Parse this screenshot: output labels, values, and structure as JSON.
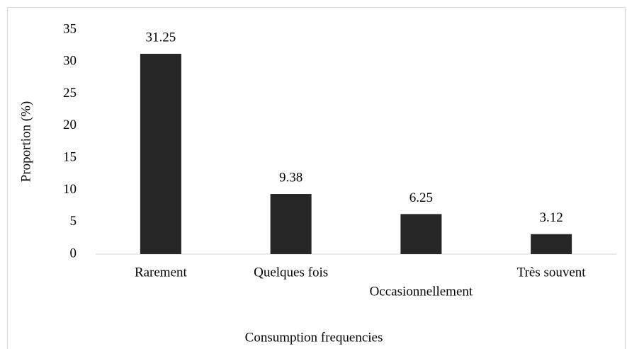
{
  "chart_data": {
    "type": "bar",
    "x_label": "Consumption frequencies",
    "y_label": "Proportion (%)",
    "categories": [
      "Rarement",
      "Quelques fois",
      "Occasionnellement",
      "Très souvent"
    ],
    "values": [
      31.25,
      9.38,
      6.25,
      3.12
    ],
    "color": "#262626",
    "ylim": [
      0,
      35
    ],
    "yticks": [
      0,
      5,
      10,
      15,
      20,
      25,
      30,
      35
    ],
    "grid": false
  }
}
